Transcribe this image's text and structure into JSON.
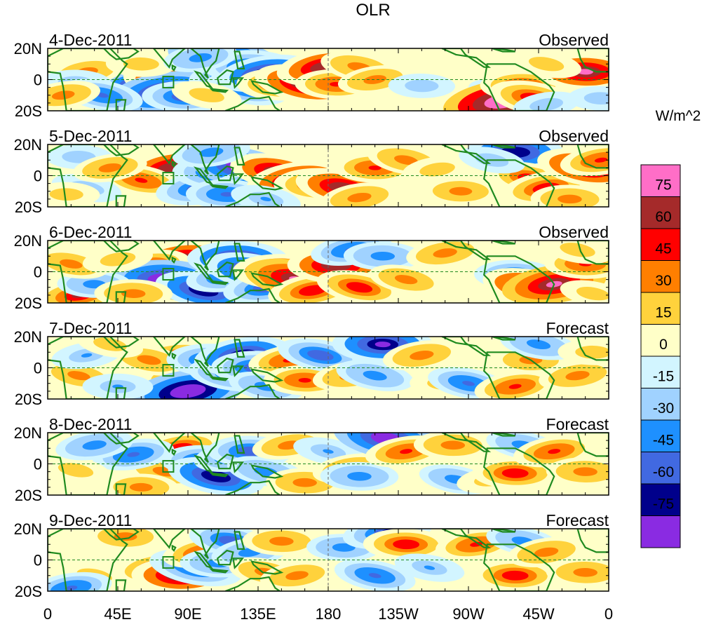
{
  "chart_data": {
    "type": "heatmap",
    "title": "OLR",
    "units": "W/m^2",
    "lon_ticks": [
      "0",
      "45E",
      "90E",
      "135E",
      "180",
      "135W",
      "90W",
      "45W",
      "0"
    ],
    "lon_values": [
      0,
      45,
      90,
      135,
      180,
      225,
      270,
      315,
      360
    ],
    "lat_ticks": [
      "20N",
      "0",
      "20S"
    ],
    "lat_values": [
      20,
      0,
      -20
    ],
    "xlim": [
      0,
      360
    ],
    "ylim": [
      -20,
      20
    ],
    "panels": [
      {
        "date": "4-Dec-2011",
        "kind": "Observed"
      },
      {
        "date": "5-Dec-2011",
        "kind": "Observed"
      },
      {
        "date": "6-Dec-2011",
        "kind": "Observed"
      },
      {
        "date": "7-Dec-2011",
        "kind": "Forecast"
      },
      {
        "date": "8-Dec-2011",
        "kind": "Forecast"
      },
      {
        "date": "9-Dec-2011",
        "kind": "Forecast"
      }
    ],
    "colorbar": {
      "levels": [
        "75",
        "60",
        "45",
        "30",
        "15",
        "0",
        "-15",
        "-30",
        "-45",
        "-60",
        "-75"
      ],
      "colors": [
        "#ff6ec7",
        "#a52a2a",
        "#ff0000",
        "#ff7f00",
        "#ffd23c",
        "#ffffc8",
        "#d2f5ff",
        "#a0d2ff",
        "#1e90ff",
        "#4169e1",
        "#00008b",
        "#8a2be2"
      ]
    },
    "anomalies": [
      [
        [
          55,
          -2,
          -2
        ],
        [
          88,
          6,
          1.6
        ],
        [
          80,
          -3,
          2.5
        ],
        [
          75,
          -8,
          -3
        ],
        [
          88,
          -11,
          -1.8
        ],
        [
          114,
          13,
          -3.4
        ],
        [
          118,
          3,
          -1.8
        ],
        [
          130,
          8,
          -2.2
        ],
        [
          128,
          -6,
          -1.6
        ],
        [
          140,
          4,
          -2.4
        ],
        [
          150,
          -3,
          2
        ],
        [
          165,
          -3,
          2.6
        ],
        [
          178,
          8,
          2.4
        ],
        [
          185,
          -3,
          1.6
        ],
        [
          200,
          8,
          1.4
        ],
        [
          210,
          0,
          1.2
        ],
        [
          240,
          -4,
          -0.8
        ],
        [
          290,
          -8,
          -0.6
        ],
        [
          292,
          -14,
          3.6
        ],
        [
          305,
          -4,
          1.8
        ],
        [
          312,
          -12,
          2
        ],
        [
          320,
          -16,
          -0.8
        ],
        [
          345,
          5,
          2.6
        ],
        [
          320,
          10,
          1
        ],
        [
          25,
          5,
          1.2
        ],
        [
          18,
          -2,
          -1
        ],
        [
          35,
          -10,
          -1.6
        ],
        [
          10,
          -10,
          1.2
        ],
        [
          60,
          10,
          1
        ],
        [
          102,
          -10,
          1
        ],
        [
          98,
          14,
          -1.2
        ],
        [
          355,
          -12,
          -0.8
        ]
      ],
      [
        [
          80,
          5,
          2.4
        ],
        [
          85,
          -8,
          1.8
        ],
        [
          60,
          -3,
          1.6
        ],
        [
          98,
          -8,
          -2
        ],
        [
          110,
          2,
          -2.2
        ],
        [
          125,
          5,
          -3
        ],
        [
          130,
          -7,
          -2
        ],
        [
          115,
          -12,
          -1.6
        ],
        [
          148,
          2,
          2.4
        ],
        [
          160,
          -3,
          2.6
        ],
        [
          175,
          -6,
          2.2
        ],
        [
          190,
          -8,
          2.4
        ],
        [
          200,
          -14,
          1.4
        ],
        [
          210,
          5,
          1.6
        ],
        [
          230,
          10,
          1.4
        ],
        [
          250,
          4,
          1
        ],
        [
          300,
          15,
          -2.4
        ],
        [
          310,
          -2,
          1.8
        ],
        [
          320,
          -8,
          2
        ],
        [
          335,
          -15,
          1.4
        ],
        [
          345,
          5,
          2.4
        ],
        [
          355,
          10,
          1.6
        ],
        [
          20,
          12,
          -0.8
        ],
        [
          25,
          -8,
          -1
        ],
        [
          40,
          5,
          1.2
        ],
        [
          12,
          -12,
          0.8
        ],
        [
          140,
          -15,
          -1
        ],
        [
          105,
          15,
          -1.4
        ],
        [
          265,
          -10,
          1.2
        ],
        [
          285,
          10,
          -0.8
        ]
      ],
      [
        [
          85,
          8,
          2.4
        ],
        [
          95,
          -5,
          2
        ],
        [
          80,
          -10,
          2
        ],
        [
          65,
          4,
          1.6
        ],
        [
          75,
          -5,
          -3
        ],
        [
          100,
          -12,
          -2.4
        ],
        [
          115,
          -3,
          -1.6
        ],
        [
          122,
          8,
          -2.6
        ],
        [
          132,
          0,
          -2.4
        ],
        [
          140,
          -10,
          -1.8
        ],
        [
          150,
          0,
          2.4
        ],
        [
          160,
          -5,
          2.8
        ],
        [
          170,
          -12,
          2
        ],
        [
          185,
          4,
          2.4
        ],
        [
          200,
          -10,
          1.8
        ],
        [
          195,
          14,
          -1.6
        ],
        [
          215,
          10,
          -1.4
        ],
        [
          230,
          -5,
          1.2
        ],
        [
          255,
          12,
          1.4
        ],
        [
          300,
          -2,
          -1.6
        ],
        [
          310,
          -10,
          2.4
        ],
        [
          325,
          -8,
          2.8
        ],
        [
          345,
          5,
          1.6
        ],
        [
          340,
          14,
          1
        ],
        [
          20,
          -15,
          2.2
        ],
        [
          30,
          -8,
          -1.2
        ],
        [
          15,
          5,
          1.2
        ],
        [
          45,
          8,
          1
        ],
        [
          55,
          -14,
          1.4
        ],
        [
          350,
          -14,
          0.8
        ]
      ],
      [
        [
          80,
          6,
          2.2
        ],
        [
          88,
          -8,
          2
        ],
        [
          65,
          5,
          1.4
        ],
        [
          90,
          -15,
          -3.4
        ],
        [
          105,
          5,
          -2
        ],
        [
          115,
          -5,
          -1.4
        ],
        [
          125,
          8,
          -2.4
        ],
        [
          135,
          0,
          -2.2
        ],
        [
          140,
          -12,
          -1.2
        ],
        [
          155,
          5,
          1.6
        ],
        [
          165,
          -8,
          1.6
        ],
        [
          175,
          8,
          -1.8
        ],
        [
          195,
          -5,
          1.4
        ],
        [
          215,
          15,
          -2.6
        ],
        [
          210,
          -5,
          -1.4
        ],
        [
          240,
          8,
          1.4
        ],
        [
          255,
          -10,
          1
        ],
        [
          270,
          -10,
          -1.6
        ],
        [
          300,
          -12,
          1.6
        ],
        [
          310,
          5,
          1.2
        ],
        [
          315,
          15,
          -1.4
        ],
        [
          340,
          -5,
          1.4
        ],
        [
          350,
          10,
          1
        ],
        [
          20,
          -5,
          1.2
        ],
        [
          25,
          8,
          -1
        ],
        [
          45,
          -12,
          -1
        ],
        [
          40,
          15,
          0.8
        ]
      ],
      [
        [
          85,
          10,
          1.8
        ],
        [
          95,
          -6,
          1.8
        ],
        [
          75,
          -5,
          1.4
        ],
        [
          55,
          6,
          -1.6
        ],
        [
          100,
          2,
          -1.8
        ],
        [
          108,
          -8,
          -2.4
        ],
        [
          120,
          5,
          -1.6
        ],
        [
          130,
          8,
          -1.8
        ],
        [
          140,
          -5,
          -1.4
        ],
        [
          155,
          12,
          1.2
        ],
        [
          165,
          -12,
          1.4
        ],
        [
          180,
          8,
          -1
        ],
        [
          195,
          -3,
          1.4
        ],
        [
          200,
          -8,
          -1.4
        ],
        [
          218,
          16,
          -3
        ],
        [
          230,
          8,
          1.6
        ],
        [
          260,
          12,
          1.4
        ],
        [
          262,
          -10,
          -1.2
        ],
        [
          285,
          -10,
          1
        ],
        [
          300,
          -6,
          1.8
        ],
        [
          305,
          12,
          -1.2
        ],
        [
          325,
          8,
          1.6
        ],
        [
          345,
          -5,
          1.4
        ],
        [
          18,
          -4,
          1
        ],
        [
          30,
          12,
          -1.4
        ],
        [
          60,
          -15,
          1.2
        ]
      ],
      [
        [
          70,
          -5,
          1.8
        ],
        [
          85,
          -10,
          2.4
        ],
        [
          95,
          -5,
          -2.2
        ],
        [
          100,
          5,
          1.6
        ],
        [
          110,
          -2,
          -1.4
        ],
        [
          118,
          12,
          -1.8
        ],
        [
          130,
          5,
          -1.4
        ],
        [
          150,
          12,
          1.4
        ],
        [
          140,
          -8,
          1.2
        ],
        [
          160,
          -10,
          1.2
        ],
        [
          190,
          8,
          -1.2
        ],
        [
          210,
          -10,
          -1.6
        ],
        [
          218,
          18,
          -2
        ],
        [
          230,
          10,
          1.8
        ],
        [
          245,
          -5,
          -1
        ],
        [
          275,
          10,
          1.6
        ],
        [
          300,
          -10,
          1.8
        ],
        [
          305,
          12,
          -1.2
        ],
        [
          320,
          5,
          1.4
        ],
        [
          345,
          -8,
          1.4
        ],
        [
          30,
          -10,
          1
        ],
        [
          15,
          -18,
          -1.6
        ],
        [
          50,
          15,
          1.2
        ]
      ]
    ]
  }
}
